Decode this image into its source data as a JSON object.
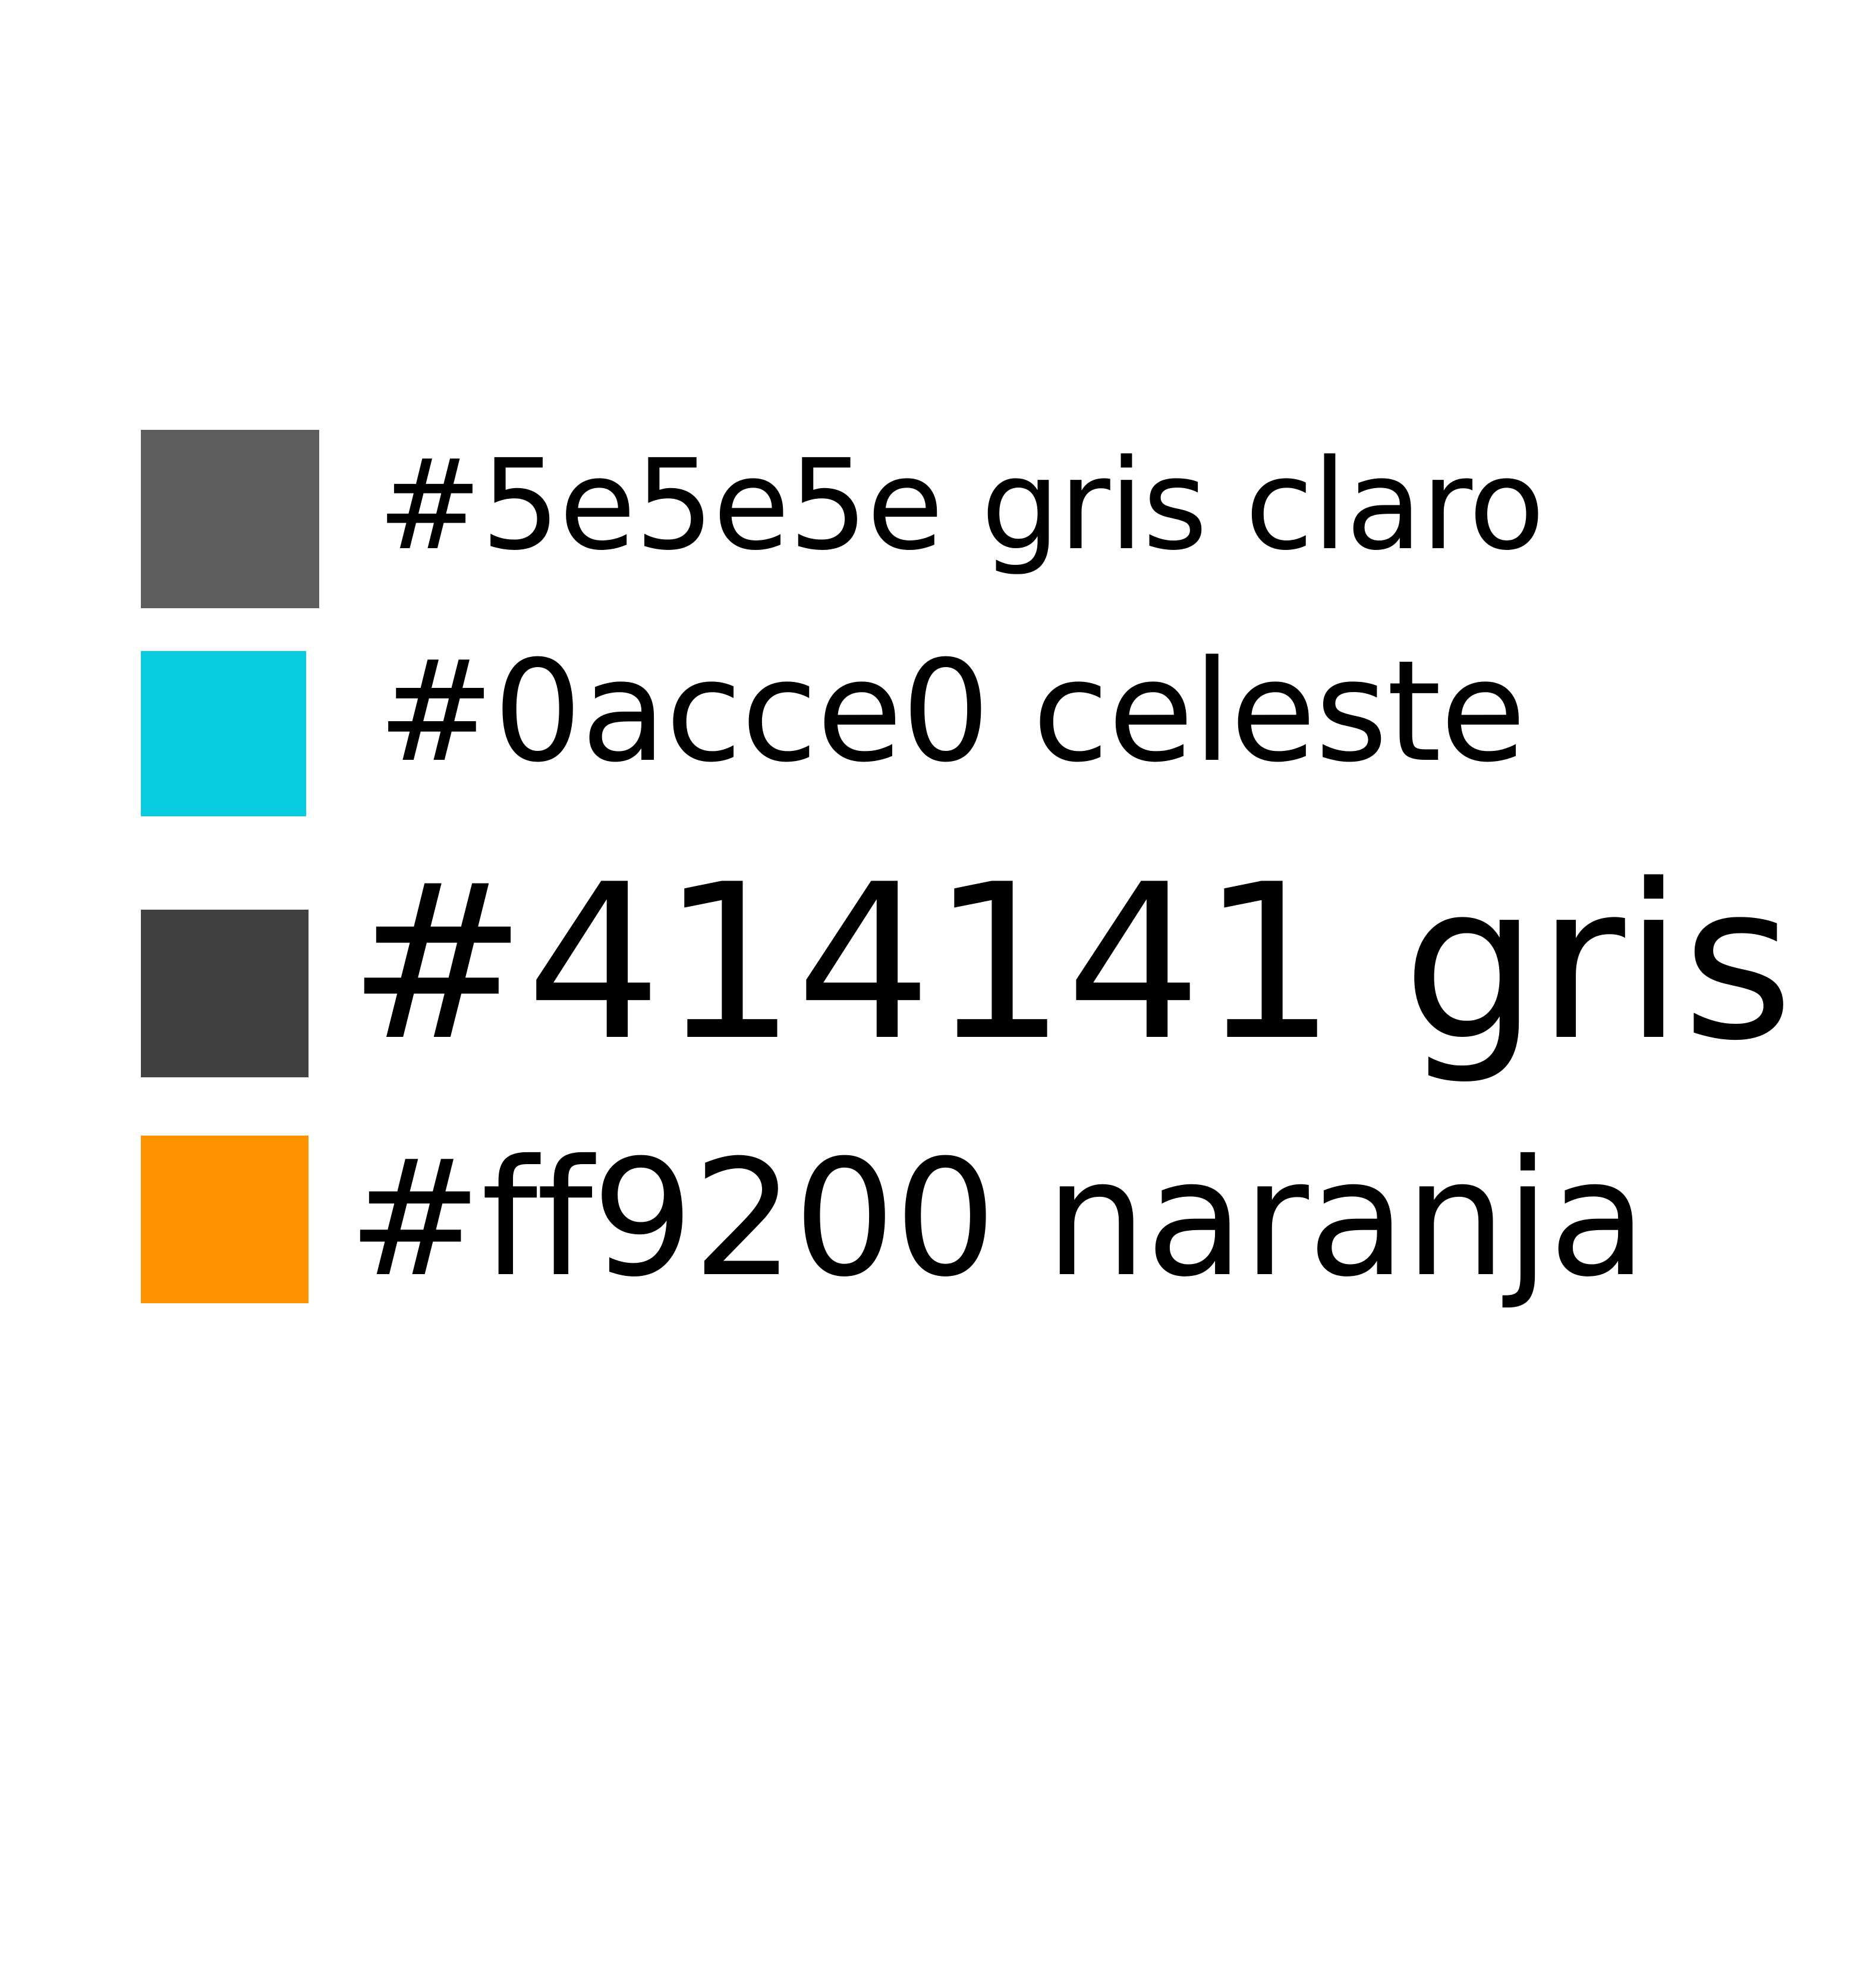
{
  "swatches": [
    {
      "color": "#5e5e5e",
      "label": "#5e5e5e gris claro"
    },
    {
      "color": "#0acce0",
      "label": "#0acce0 celeste"
    },
    {
      "color": "#414141",
      "label": "#414141 gris"
    },
    {
      "color": "#ff9200",
      "label": "#ff9200 naranja"
    }
  ]
}
